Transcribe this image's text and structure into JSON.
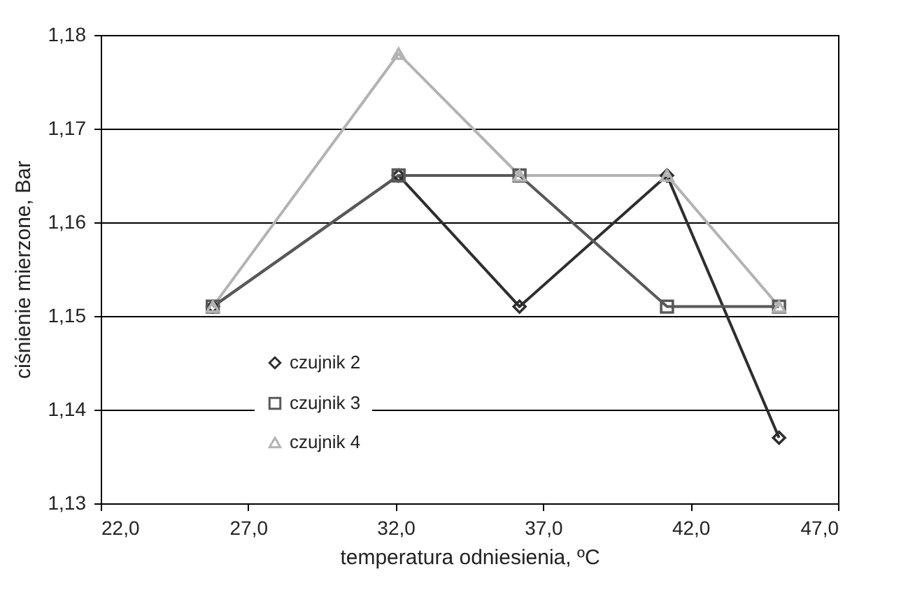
{
  "chart_data": {
    "type": "line",
    "xlabel": "temperatura odniesienia, ºC",
    "ylabel": "ciśnienie mierzone, Bar",
    "xlim": [
      22,
      47
    ],
    "xticks": [
      {
        "value": 22,
        "label": "22,0"
      },
      {
        "value": 27,
        "label": "27,0"
      },
      {
        "value": 32,
        "label": "32,0"
      },
      {
        "value": 37,
        "label": "37,0"
      },
      {
        "value": 42,
        "label": "42,0"
      },
      {
        "value": 47,
        "label": "47,0"
      }
    ],
    "ylim": [
      1.13,
      1.18
    ],
    "yticks": [
      {
        "value": 1.13,
        "label": "1,13"
      },
      {
        "value": 1.14,
        "label": "1,14"
      },
      {
        "value": 1.15,
        "label": "1,15"
      },
      {
        "value": 1.16,
        "label": "1,16"
      },
      {
        "value": 1.17,
        "label": "1,17"
      },
      {
        "value": 1.18,
        "label": "1,18"
      }
    ],
    "x": [
      25.8,
      32.1,
      36.2,
      41.2,
      45.0
    ],
    "grid": "y",
    "legend": "bottom left",
    "line_style": "solid",
    "series": [
      {
        "name": "czujnik 2",
        "color": "#2e2e2e",
        "marker": "diamond",
        "values": [
          1.151,
          1.165,
          1.151,
          1.165,
          1.137
        ]
      },
      {
        "name": "czujnik 3",
        "color": "#595959",
        "marker": "square",
        "values": [
          1.151,
          1.165,
          1.165,
          1.151,
          1.151
        ]
      },
      {
        "name": "czujnik 4",
        "color": "#b3b3b3",
        "marker": "triangle",
        "values": [
          1.151,
          1.178,
          1.165,
          1.165,
          1.151
        ]
      }
    ]
  }
}
